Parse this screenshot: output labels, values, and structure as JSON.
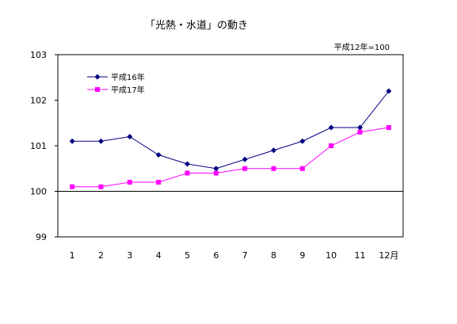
{
  "chart_data": {
    "type": "line",
    "title": "「光熱・水道」の動き",
    "base_note": "平成12年=100",
    "categories": [
      "1",
      "2",
      "3",
      "4",
      "5",
      "6",
      "7",
      "8",
      "9",
      "10",
      "11",
      "12月"
    ],
    "ylim": [
      99,
      103
    ],
    "yticks": [
      99,
      100,
      101,
      102,
      103
    ],
    "reference_line": 100,
    "grid": false,
    "legend_position": "top-left",
    "series": [
      {
        "name": "平成16年",
        "color": "#000080",
        "marker": "diamond",
        "values": [
          101.1,
          101.1,
          101.2,
          100.8,
          100.6,
          100.5,
          100.7,
          100.9,
          101.1,
          101.4,
          101.4,
          102.2
        ]
      },
      {
        "name": "平成17年",
        "color": "#ff00ff",
        "marker": "square",
        "values": [
          100.1,
          100.1,
          100.2,
          100.2,
          100.4,
          100.4,
          100.5,
          100.5,
          100.5,
          101.0,
          101.3,
          101.4
        ]
      }
    ]
  }
}
